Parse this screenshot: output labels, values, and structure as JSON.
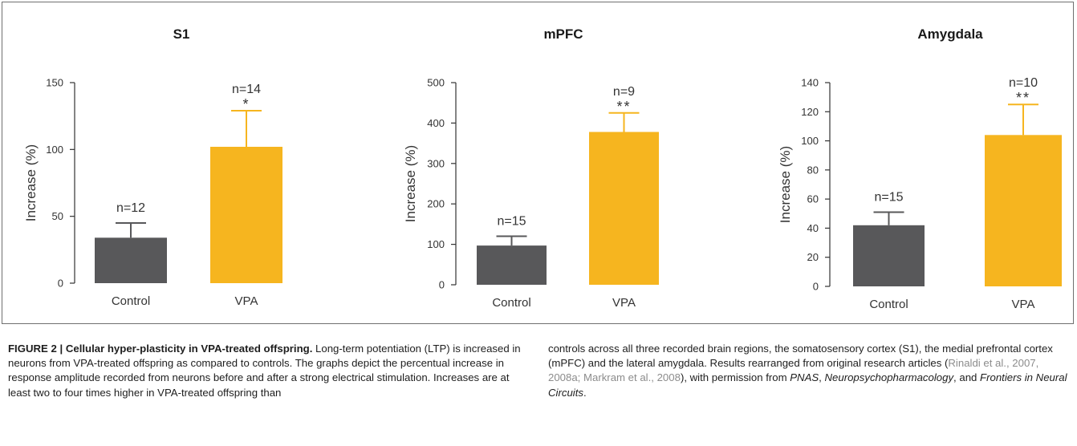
{
  "colors": {
    "control": "#58585a",
    "vpa": "#f6b51f",
    "axis": "#333333",
    "citation": "#8c8c8c"
  },
  "chart_data": [
    {
      "type": "bar",
      "title": "S1",
      "ylabel": "Increase (%)",
      "ylim": [
        0,
        150
      ],
      "yticks": [
        "0",
        "50",
        "100",
        "150"
      ],
      "categories": [
        "Control",
        "VPA"
      ],
      "values": [
        34,
        102
      ],
      "error_upper": [
        45,
        129
      ],
      "n_labels": [
        "n=12",
        "n=14"
      ],
      "significance": [
        "",
        "*"
      ],
      "grid": false
    },
    {
      "type": "bar",
      "title": "mPFC",
      "ylabel": "Increase (%)",
      "ylim": [
        0,
        500
      ],
      "yticks": [
        "0",
        "100",
        "200",
        "300",
        "400",
        "500"
      ],
      "categories": [
        "Control",
        "VPA"
      ],
      "values": [
        97,
        378
      ],
      "error_upper": [
        120,
        425
      ],
      "n_labels": [
        "n=15",
        "n=9"
      ],
      "significance": [
        "",
        "**"
      ],
      "grid": false
    },
    {
      "type": "bar",
      "title": "Amygdala",
      "ylabel": "Increase (%)",
      "ylim": [
        0,
        140
      ],
      "yticks": [
        "0",
        "20",
        "40",
        "60",
        "80",
        "100",
        "120",
        "140"
      ],
      "categories": [
        "Control",
        "VPA"
      ],
      "values": [
        42,
        104
      ],
      "error_upper": [
        51,
        125
      ],
      "n_labels": [
        "n=15",
        "n=10"
      ],
      "significance": [
        "",
        "**"
      ],
      "grid": false
    }
  ],
  "caption": {
    "label": "FIGURE 2 | Cellular hyper-plasticity in VPA-treated offspring.",
    "text_1": " Long-term potentiation (LTP) is increased in neurons from VPA-treated offspring as compared to controls. The graphs depict the percentual increase in response amplitude recorded from neurons before and after a strong electrical stimulation. Increases are at least two to four times higher in VPA-treated offspring than controls across all three recorded brain regions, the somatosensory cortex (S1), the medial prefrontal cortex (mPFC) and the lateral amygdala. Results rearranged from original research articles (",
    "citation_1": "Rinaldi et al., 2007, 2008a; Markram et al., 2008",
    "text_2": "), with permission from ",
    "journal_1": "PNAS",
    "sep_1": ", ",
    "journal_2": "Neuropsychopharmacology",
    "sep_2": ", and ",
    "journal_3": "Frontiers in Neural Circuits",
    "end": "."
  }
}
